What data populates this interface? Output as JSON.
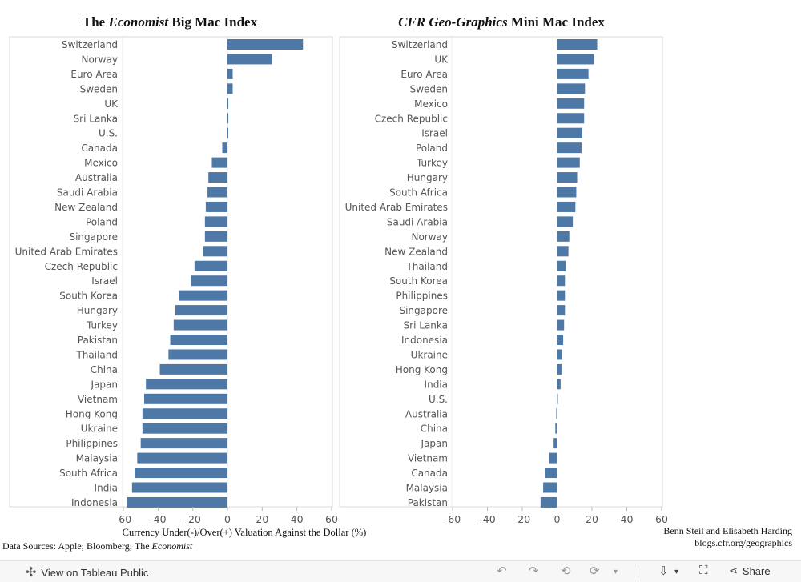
{
  "chart_data": [
    {
      "type": "bar",
      "title_prefix": "The ",
      "title_italic": "Economist",
      "title_suffix": " Big Mac Index",
      "xlabel": "Currency Under(-)/Over(+) Valuation Against the Dollar (%)",
      "xlim": [
        -60,
        60
      ],
      "xticks": [
        -60,
        -40,
        -20,
        0,
        20,
        40,
        60
      ],
      "color": "#4e79a7",
      "categories": [
        "Switzerland",
        "Norway",
        "Euro Area",
        "Sweden",
        "UK",
        "Sri Lanka",
        "U.S.",
        "Canada",
        "Mexico",
        "Australia",
        "Saudi Arabia",
        "New Zealand",
        "Poland",
        "Singapore",
        "United Arab Emirates",
        "Czech Republic",
        "Israel",
        "South Korea",
        "Hungary",
        "Turkey",
        "Pakistan",
        "Thailand",
        "China",
        "Japan",
        "Vietnam",
        "Hong Kong",
        "Ukraine",
        "Philippines",
        "Malaysia",
        "South Africa",
        "India",
        "Indonesia"
      ],
      "values": [
        43.5,
        25.5,
        3,
        3,
        0.5,
        0.5,
        0.3,
        -3,
        -9,
        -11,
        -11.5,
        -12.5,
        -13,
        -13,
        -14,
        -19,
        -21,
        -28,
        -30,
        -31,
        -33,
        -34,
        -39,
        -47,
        -48,
        -49,
        -49,
        -50,
        -52,
        -53.5,
        -55,
        -58
      ]
    },
    {
      "type": "bar",
      "title_prefix": "",
      "title_italic": "CFR Geo-Graphics",
      "title_suffix": " Mini Mac Index",
      "xlim": [
        -60,
        60
      ],
      "xticks": [
        -60,
        -40,
        -20,
        0,
        20,
        40,
        60
      ],
      "color": "#4e79a7",
      "categories": [
        "Switzerland",
        "UK",
        "Euro Area",
        "Sweden",
        "Mexico",
        "Czech Republic",
        "Israel",
        "Poland",
        "Turkey",
        "Hungary",
        "South Africa",
        "United Arab Emirates",
        "Saudi Arabia",
        "Norway",
        "New Zealand",
        "Thailand",
        "South Korea",
        "Philippines",
        "Singapore",
        "Sri Lanka",
        "Indonesia",
        "Ukraine",
        "Hong Kong",
        "India",
        "U.S.",
        "Australia",
        "China",
        "Japan",
        "Vietnam",
        "Canada",
        "Malaysia",
        "Pakistan"
      ],
      "values": [
        23,
        21,
        18,
        16,
        15.5,
        15.5,
        14.5,
        14,
        13,
        11.5,
        11,
        10.5,
        9,
        7,
        6.5,
        5,
        4.5,
        4.5,
        4.5,
        4,
        3.5,
        3,
        2.5,
        2,
        0.3,
        -0.5,
        -1,
        -2,
        -4.5,
        -7,
        -8,
        -9.5
      ]
    }
  ],
  "footer": {
    "sources_prefix": "Data Sources: Apple; Bloomberg; The ",
    "sources_italic": "Economist",
    "credit_authors": "Benn Steil and Elisabeth Harding",
    "credit_url": "blogs.cfr.org/geographics"
  },
  "toolbar": {
    "view_label": "View on Tableau Public",
    "share_label": "Share",
    "icons": [
      "tableau-logo-icon",
      "undo-icon",
      "redo-icon",
      "revert-icon",
      "refresh-icon",
      "pause-icon",
      "download-icon",
      "fullscreen-icon",
      "share-icon"
    ]
  }
}
